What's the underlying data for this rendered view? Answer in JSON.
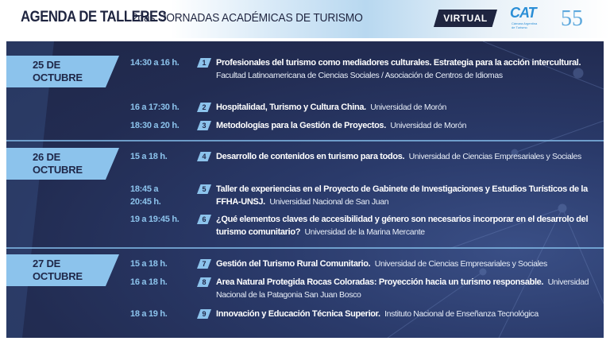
{
  "header": {
    "title": "AGENDA DE TALLERES",
    "subtitle": "2das. JORNADAS ACADÉMICAS DE TURISMO",
    "badge": "VIRTUAL",
    "logo_text": "CAT",
    "logo_caption": "Cámara Argentina de Turismo",
    "logo_anniversary": "55"
  },
  "colors": {
    "navy": "#1f2748",
    "accent": "#8cc3ec"
  },
  "days": [
    {
      "date_line1": "25 DE",
      "date_line2": "OCTUBRE",
      "sessions": [
        {
          "time": "14:30 a 16 h.",
          "num": "1",
          "title": "Profesionales del turismo como mediadores culturales. Estrategia para la acción intercultural.",
          "institution": "Facultad Latinoamericana de Ciencias Sociales / Asociación de Centros de Idiomas"
        },
        {
          "time": "16 a 17:30 h.",
          "num": "2",
          "title": "Hospitalidad, Turismo y Cultura China.",
          "institution": "Universidad de Morón"
        },
        {
          "time": "18:30 a 20 h.",
          "num": "3",
          "title": "Metodologías para la Gestión de Proyectos.",
          "institution": "Universidad de Morón"
        }
      ]
    },
    {
      "date_line1": "26 DE",
      "date_line2": "OCTUBRE",
      "sessions": [
        {
          "time": "15 a 18 h.",
          "num": "4",
          "title": "Desarrollo de contenidos en turismo para todos.",
          "institution": "Universidad de Ciencias Empresariales y Sociales"
        },
        {
          "time": "18:45 a 20:45 h.",
          "num": "5",
          "title": "Taller de experiencias en el Proyecto de Gabinete de Investigaciones y Estudios Turísticos de la FFHA-UNSJ.",
          "institution": "Universidad Nacional de San Juan"
        },
        {
          "time": "19 a 19:45 h.",
          "num": "6",
          "title": "¿Qué elementos claves de accesibilidad y género son necesarios incorporar en el desarrolo del turismo comunitario?",
          "institution": "Universidad de la Marina Mercante"
        }
      ]
    },
    {
      "date_line1": "27 DE",
      "date_line2": "OCTUBRE",
      "sessions": [
        {
          "time": "15 a 18 h.",
          "num": "7",
          "title": "Gestión del Turismo Rural Comunitario.",
          "institution": "Universidad de Ciencias Empresariales y Sociales"
        },
        {
          "time": "16 a 18 h.",
          "num": "8",
          "title": "Area Natural Protegida Rocas Coloradas: Proyección hacia un turismo responsable.",
          "institution": "Universidad Nacional de la Patagonia San Juan Bosco"
        },
        {
          "time": "18 a 19 h.",
          "num": "9",
          "title": "Innovación y Educación Técnica Superior.",
          "institution": "Instituto Nacional de Enseñanza Tecnológica"
        }
      ]
    }
  ]
}
